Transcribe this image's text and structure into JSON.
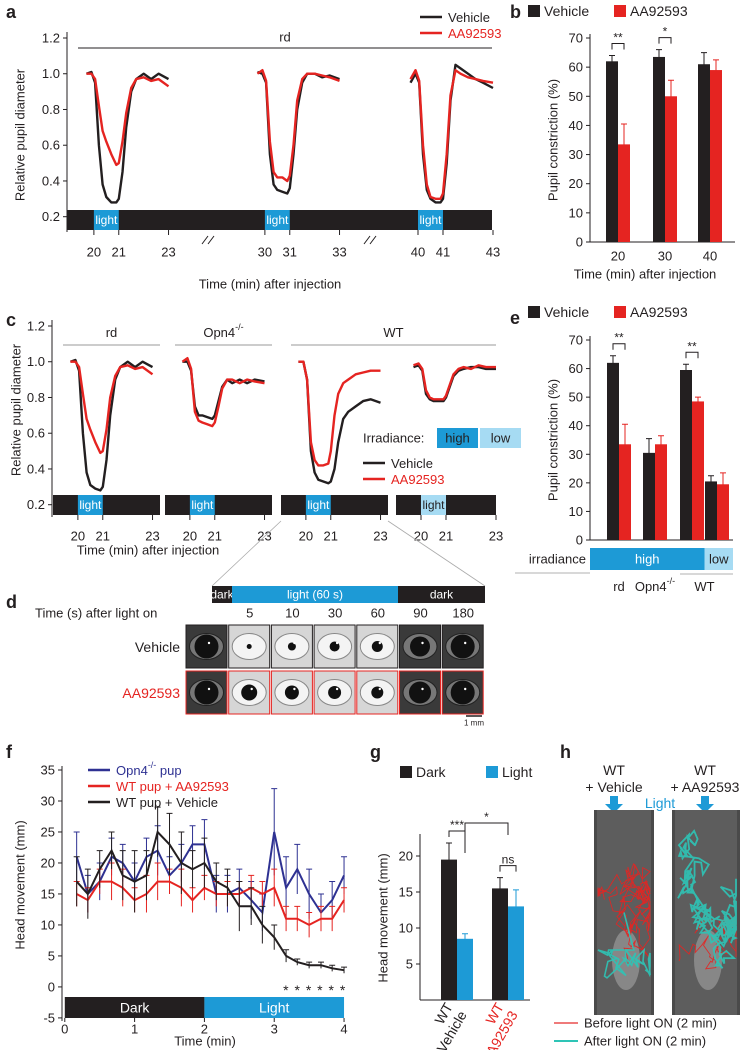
{
  "panel_labels": [
    "a",
    "b",
    "c",
    "d",
    "e",
    "f",
    "g",
    "h"
  ],
  "chart_data": [
    {
      "type": "line",
      "ylabel": "Relative  pupil diameter",
      "xlabel": "Time (min)  after injection",
      "annotation": "rd",
      "ylim": [
        0.12,
        1.2
      ],
      "yticks": [
        0.2,
        0.4,
        0.6,
        0.8,
        {
          "value": 1,
          "label": "1.0"
        },
        1.2
      ],
      "series": [
        {
          "name": "Vehicle",
          "color": "#231f20"
        },
        {
          "name": "AA92593",
          "color": "#e52421"
        }
      ],
      "dark_color": "#231f20",
      "light_color": "#1d9ad6",
      "segments": [
        {
          "xlim": [
            19,
            23.3
          ],
          "xticks": [
            20,
            21,
            23
          ],
          "light": [
            20,
            21
          ],
          "light_label": "light",
          "x": [
            19.7,
            19.9,
            20.05,
            20.2,
            20.35,
            20.5,
            20.7,
            20.9,
            21.0,
            21.15,
            21.3,
            21.5,
            21.7,
            22.0,
            22.3,
            22.6,
            23.0
          ],
          "values": [
            [
              1.0,
              1.01,
              0.95,
              0.6,
              0.38,
              0.31,
              0.28,
              0.28,
              0.3,
              0.45,
              0.7,
              0.9,
              0.97,
              1.0,
              0.97,
              1.0,
              0.97
            ],
            [
              1.0,
              1.0,
              0.97,
              0.82,
              0.68,
              0.62,
              0.55,
              0.49,
              0.5,
              0.62,
              0.78,
              0.92,
              0.97,
              0.98,
              0.96,
              0.97,
              0.93
            ]
          ]
        },
        {
          "xlim": [
            29,
            33.3
          ],
          "xticks": [
            30,
            31,
            33
          ],
          "light": [
            30,
            31
          ],
          "light_label": "light",
          "x": [
            29.7,
            29.9,
            30.05,
            30.2,
            30.35,
            30.5,
            30.7,
            30.9,
            31.0,
            31.15,
            31.3,
            31.5,
            31.7,
            32.0,
            32.3,
            32.6,
            33.0
          ],
          "values": [
            [
              1.01,
              1.0,
              0.95,
              0.55,
              0.38,
              0.35,
              0.34,
              0.33,
              0.36,
              0.55,
              0.8,
              0.95,
              1.0,
              1.0,
              0.98,
              0.99,
              0.97
            ],
            [
              1.0,
              1.02,
              0.96,
              0.62,
              0.45,
              0.42,
              0.42,
              0.4,
              0.43,
              0.6,
              0.85,
              0.97,
              1.0,
              1.0,
              0.99,
              0.98,
              0.96
            ]
          ]
        },
        {
          "xlim": [
            39,
            43
          ],
          "xticks": [
            40,
            41,
            43
          ],
          "light": [
            40,
            41
          ],
          "light_label": "light",
          "x": [
            39.7,
            39.9,
            40.05,
            40.2,
            40.35,
            40.5,
            40.7,
            40.9,
            41.0,
            41.15,
            41.3,
            41.5,
            41.7,
            42.0,
            42.3,
            42.6,
            43.0
          ],
          "values": [
            [
              0.95,
              1.0,
              0.95,
              0.55,
              0.35,
              0.3,
              0.28,
              0.28,
              0.3,
              0.5,
              0.85,
              1.05,
              1.03,
              1.0,
              0.97,
              0.95,
              0.92
            ],
            [
              0.97,
              1.02,
              0.96,
              0.6,
              0.38,
              0.31,
              0.3,
              0.3,
              0.33,
              0.55,
              0.88,
              1.02,
              1.0,
              0.98,
              0.97,
              0.96,
              0.95
            ]
          ]
        }
      ]
    },
    {
      "type": "bar",
      "ylabel": "Pupil constriction (%)",
      "xlabel": "Time (min)  after injection",
      "categories": [
        "20",
        "30",
        "40"
      ],
      "ylim": [
        0,
        70
      ],
      "yticks": [
        0,
        10,
        20,
        30,
        40,
        50,
        60,
        70
      ],
      "series": [
        {
          "name": "Vehicle",
          "color": "#231f20",
          "values": [
            62,
            63.5,
            61
          ],
          "errors": [
            2,
            2.5,
            4
          ]
        },
        {
          "name": "AA92593",
          "color": "#e52421",
          "values": [
            33.5,
            50,
            59
          ],
          "errors": [
            7,
            5.5,
            3.5
          ]
        }
      ],
      "significance": [
        "**",
        "*",
        null
      ]
    },
    {
      "type": "line",
      "ylabel": "Relative  pupil diameter",
      "xlabel": "Time (min)  after injection",
      "ylim": [
        0.12,
        1.2
      ],
      "yticks": [
        0.2,
        0.4,
        0.6,
        0.8,
        {
          "value": 1,
          "label": "1.0"
        },
        1.2
      ],
      "series": [
        {
          "name": "Vehicle",
          "color": "#231f20"
        },
        {
          "name": "AA92593",
          "color": "#e52421"
        }
      ],
      "dark_color": "#231f20",
      "irradiance_legend": {
        "title": "Irradiance:",
        "levels": [
          {
            "label": "high",
            "color": "#1d9ad6"
          },
          {
            "label": "low",
            "color": "#a6dbf3"
          }
        ]
      },
      "segments": [
        {
          "label": "rd",
          "irradiance": "high",
          "xlim": [
            19,
            23.3
          ],
          "xticks": [
            20,
            21,
            23
          ],
          "light": [
            20,
            21
          ],
          "light_label": "light",
          "x": [
            19.7,
            19.9,
            20.05,
            20.2,
            20.35,
            20.5,
            20.7,
            20.9,
            21.0,
            21.15,
            21.3,
            21.5,
            21.7,
            22.0,
            22.3,
            22.6,
            23.0
          ],
          "values": [
            [
              1.0,
              1.01,
              0.95,
              0.6,
              0.38,
              0.31,
              0.29,
              0.28,
              0.3,
              0.45,
              0.7,
              0.9,
              0.97,
              1.0,
              0.97,
              1.0,
              0.97
            ],
            [
              1.0,
              1.0,
              0.97,
              0.82,
              0.68,
              0.62,
              0.55,
              0.49,
              0.5,
              0.62,
              0.8,
              0.92,
              0.97,
              0.98,
              0.96,
              0.97,
              0.93
            ]
          ]
        },
        {
          "label": "Opn4",
          "label_sup": "-/-",
          "irradiance": "high",
          "xlim": [
            19,
            23.3
          ],
          "xticks": [
            20,
            21,
            23
          ],
          "light": [
            20,
            21
          ],
          "light_label": "light",
          "x": [
            19.7,
            19.9,
            20.05,
            20.2,
            20.35,
            20.5,
            20.7,
            20.9,
            21.0,
            21.15,
            21.3,
            21.5,
            21.7,
            22.0,
            22.3,
            22.6,
            23.0
          ],
          "values": [
            [
              1.0,
              1.0,
              0.95,
              0.75,
              0.7,
              0.7,
              0.69,
              0.68,
              0.7,
              0.78,
              0.86,
              0.9,
              0.88,
              0.9,
              0.88,
              0.9,
              0.89
            ],
            [
              1.0,
              1.02,
              0.96,
              0.72,
              0.67,
              0.66,
              0.65,
              0.64,
              0.66,
              0.75,
              0.85,
              0.9,
              0.9,
              0.88,
              0.9,
              0.89,
              0.88
            ]
          ]
        },
        {
          "label": "WT",
          "irradiance": "high",
          "xlim": [
            19,
            23.3
          ],
          "xticks": [
            20,
            21,
            23
          ],
          "light": [
            20,
            21
          ],
          "light_label": "light",
          "x": [
            19.7,
            19.9,
            20.05,
            20.2,
            20.35,
            20.5,
            20.7,
            20.9,
            21.0,
            21.15,
            21.3,
            21.5,
            21.7,
            22.0,
            22.3,
            22.6,
            23.0
          ],
          "values": [
            [
              1.0,
              1.0,
              0.9,
              0.5,
              0.38,
              0.34,
              0.33,
              0.32,
              0.33,
              0.4,
              0.55,
              0.68,
              0.72,
              0.75,
              0.78,
              0.79,
              0.77
            ],
            [
              1.0,
              1.0,
              0.9,
              0.55,
              0.45,
              0.42,
              0.42,
              0.43,
              0.5,
              0.7,
              0.82,
              0.88,
              0.9,
              0.93,
              0.94,
              0.95,
              0.95
            ]
          ]
        },
        {
          "irradiance": "low",
          "xlim": [
            19,
            23
          ],
          "xticks": [
            20,
            21,
            23
          ],
          "light": [
            20,
            21
          ],
          "light_label": "light",
          "x": [
            19.7,
            19.9,
            20.05,
            20.2,
            20.35,
            20.5,
            20.7,
            20.9,
            21.0,
            21.15,
            21.3,
            21.5,
            21.7,
            22.0,
            22.3,
            22.6,
            23.0
          ],
          "values": [
            [
              0.97,
              0.98,
              0.95,
              0.82,
              0.79,
              0.78,
              0.78,
              0.78,
              0.8,
              0.86,
              0.92,
              0.95,
              0.96,
              0.97,
              0.97,
              0.96,
              0.96
            ],
            [
              0.98,
              0.99,
              0.96,
              0.84,
              0.8,
              0.79,
              0.79,
              0.79,
              0.81,
              0.87,
              0.93,
              0.96,
              0.97,
              0.96,
              0.98,
              0.97,
              0.97
            ]
          ]
        }
      ]
    },
    {
      "type": "bar",
      "ylabel": "Pupil constriction (%)",
      "categories": [
        "rd",
        "Opn4",
        "WT",
        null
      ],
      "category_sup": [
        null,
        "-/-",
        null,
        null
      ],
      "irradiance_label": "irradiance",
      "irradiance": [
        "high",
        "high",
        "high",
        "low"
      ],
      "irradiance_levels": [
        {
          "label": "high",
          "color": "#1d9ad6"
        },
        {
          "label": "low",
          "color": "#a6dbf3"
        }
      ],
      "ylim": [
        0,
        70
      ],
      "yticks": [
        0,
        10,
        20,
        30,
        40,
        50,
        60,
        70
      ],
      "series": [
        {
          "name": "Vehicle",
          "color": "#231f20",
          "values": [
            62,
            30.5,
            59.5,
            20.5
          ],
          "errors": [
            2.5,
            5,
            2,
            2
          ]
        },
        {
          "name": "AA92593",
          "color": "#e52421",
          "values": [
            33.5,
            33.5,
            48.5,
            19.5
          ],
          "errors": [
            7,
            3,
            1.5,
            4
          ]
        }
      ],
      "significance": [
        "**",
        null,
        "**",
        null
      ]
    },
    {
      "type": "line",
      "ylabel": "Head  movement (mm)",
      "xlabel": "Time (min)",
      "xlim": [
        -0.04,
        4.2
      ],
      "xticks": [
        0,
        1,
        2,
        3,
        4
      ],
      "ylim": [
        -5.5,
        35
      ],
      "yticks": [
        -5,
        0,
        5,
        10,
        15,
        20,
        25,
        30,
        35
      ],
      "x": [
        0.17,
        0.33,
        0.5,
        0.67,
        0.83,
        1,
        1.17,
        1.33,
        1.5,
        1.67,
        1.83,
        2,
        2.17,
        2.33,
        2.5,
        2.67,
        2.83,
        3,
        3.17,
        3.33,
        3.5,
        3.67,
        3.83,
        4
      ],
      "series": [
        {
          "name": "Opn4",
          "name_sup": "-/-",
          "name_tail": " pup",
          "color": "#2e3192",
          "values": [
            21,
            15,
            17,
            21,
            20,
            17,
            21,
            22,
            18,
            20,
            23,
            23,
            15,
            15,
            16,
            14,
            12,
            25,
            16,
            19,
            15,
            12,
            14,
            18
          ],
          "errors": [
            4,
            3,
            3,
            3,
            3,
            3,
            3,
            4,
            3,
            3,
            3,
            4,
            3,
            3,
            3,
            3,
            3,
            7,
            5,
            4,
            4,
            3,
            3,
            3
          ]
        },
        {
          "name": "WT  pup + AA92593",
          "color": "#e52421",
          "values": [
            15,
            14,
            17,
            17,
            16,
            14,
            15,
            17,
            17,
            16,
            14,
            16,
            15,
            15,
            15,
            16,
            15,
            16,
            11,
            11,
            10,
            11,
            11,
            14
          ],
          "errors": [
            2,
            2,
            2,
            3,
            3,
            2,
            3,
            3,
            2,
            3,
            2,
            2,
            2,
            2,
            2,
            2,
            2,
            3,
            2,
            2,
            2,
            2,
            2,
            2
          ]
        },
        {
          "name": "WT  pup + Vehicle",
          "color": "#231f20",
          "values": [
            17,
            15,
            19,
            22,
            18,
            17,
            18,
            25,
            23,
            20,
            19,
            20,
            17,
            16,
            13,
            13,
            10,
            8,
            5,
            4,
            3.5,
            3.5,
            3,
            2.7
          ],
          "errors": [
            4,
            4,
            3,
            3,
            4,
            5,
            4,
            4,
            5,
            5,
            3,
            4,
            3,
            3,
            4,
            3,
            3,
            2,
            1,
            0.5,
            0.5,
            0.5,
            0.5,
            0.5
          ]
        }
      ],
      "phases": [
        {
          "label": "Dark",
          "range": [
            0,
            2
          ],
          "color": "#231f20"
        },
        {
          "label": "Light",
          "range": [
            2,
            4
          ],
          "color": "#1d9ad6"
        }
      ],
      "significance": "* * * * * *"
    },
    {
      "type": "bar",
      "ylabel": "Head  movement (mm)",
      "categories": [
        [
          "WT",
          "+Vehicle"
        ],
        [
          "WT",
          "+AA92593"
        ]
      ],
      "category_colors": [
        "#231f20",
        "#e52421"
      ],
      "ylim": [
        0,
        22.5
      ],
      "yticks": [
        5,
        10,
        15,
        20
      ],
      "series": [
        {
          "name": "Dark",
          "color": "#231f20",
          "values": [
            19.5,
            15.5
          ],
          "errors": [
            2.3,
            1.5
          ]
        },
        {
          "name": "Light",
          "color": "#1d9ad6",
          "values": [
            8.5,
            13
          ],
          "errors": [
            0.7,
            2.3
          ]
        }
      ],
      "significance": [
        "***",
        "ns"
      ],
      "significance_between": "*"
    }
  ],
  "pupil_images": {
    "timeline": [
      "dark",
      "light (60  s)",
      "dark"
    ],
    "time_label": "Time (s)  after light on",
    "times": [
      5,
      10,
      30,
      60,
      90,
      180
    ],
    "rows": [
      "Vehicle",
      "AA92593"
    ],
    "scale": "1 mm"
  },
  "tracking": {
    "groups": [
      [
        "WT",
        "+ Vehicle"
      ],
      [
        "WT",
        "+ AA92593"
      ]
    ],
    "stimulus": "Light",
    "legend": [
      "Before  light ON (2 min)",
      "After light ON (2 min)"
    ]
  }
}
